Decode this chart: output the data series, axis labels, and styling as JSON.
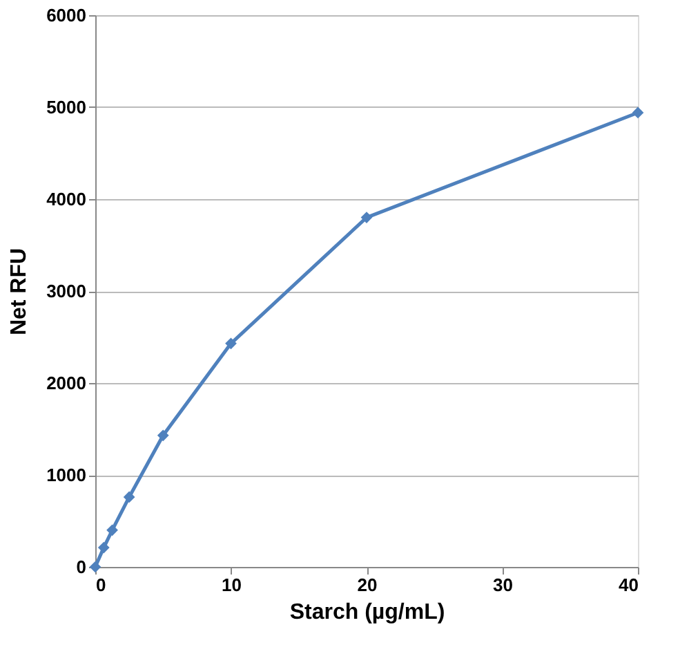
{
  "chart_data": {
    "type": "line",
    "xlabel": "Starch (µg/mL)",
    "ylabel": "Net RFU",
    "x": [
      0,
      0.625,
      1.25,
      2.5,
      5,
      10,
      20,
      40
    ],
    "series": [
      {
        "color": "#4f81bd",
        "values": [
          0,
          210,
          400,
          760,
          1430,
          2430,
          3800,
          4940
        ]
      }
    ],
    "xlim": [
      0,
      40
    ],
    "xticks": [
      0,
      10,
      20,
      30,
      40
    ],
    "ylim": [
      0,
      6000
    ],
    "yticks": [
      0,
      1000,
      2000,
      3000,
      4000,
      5000,
      6000
    ],
    "grid": "y",
    "marker": "diamond"
  }
}
